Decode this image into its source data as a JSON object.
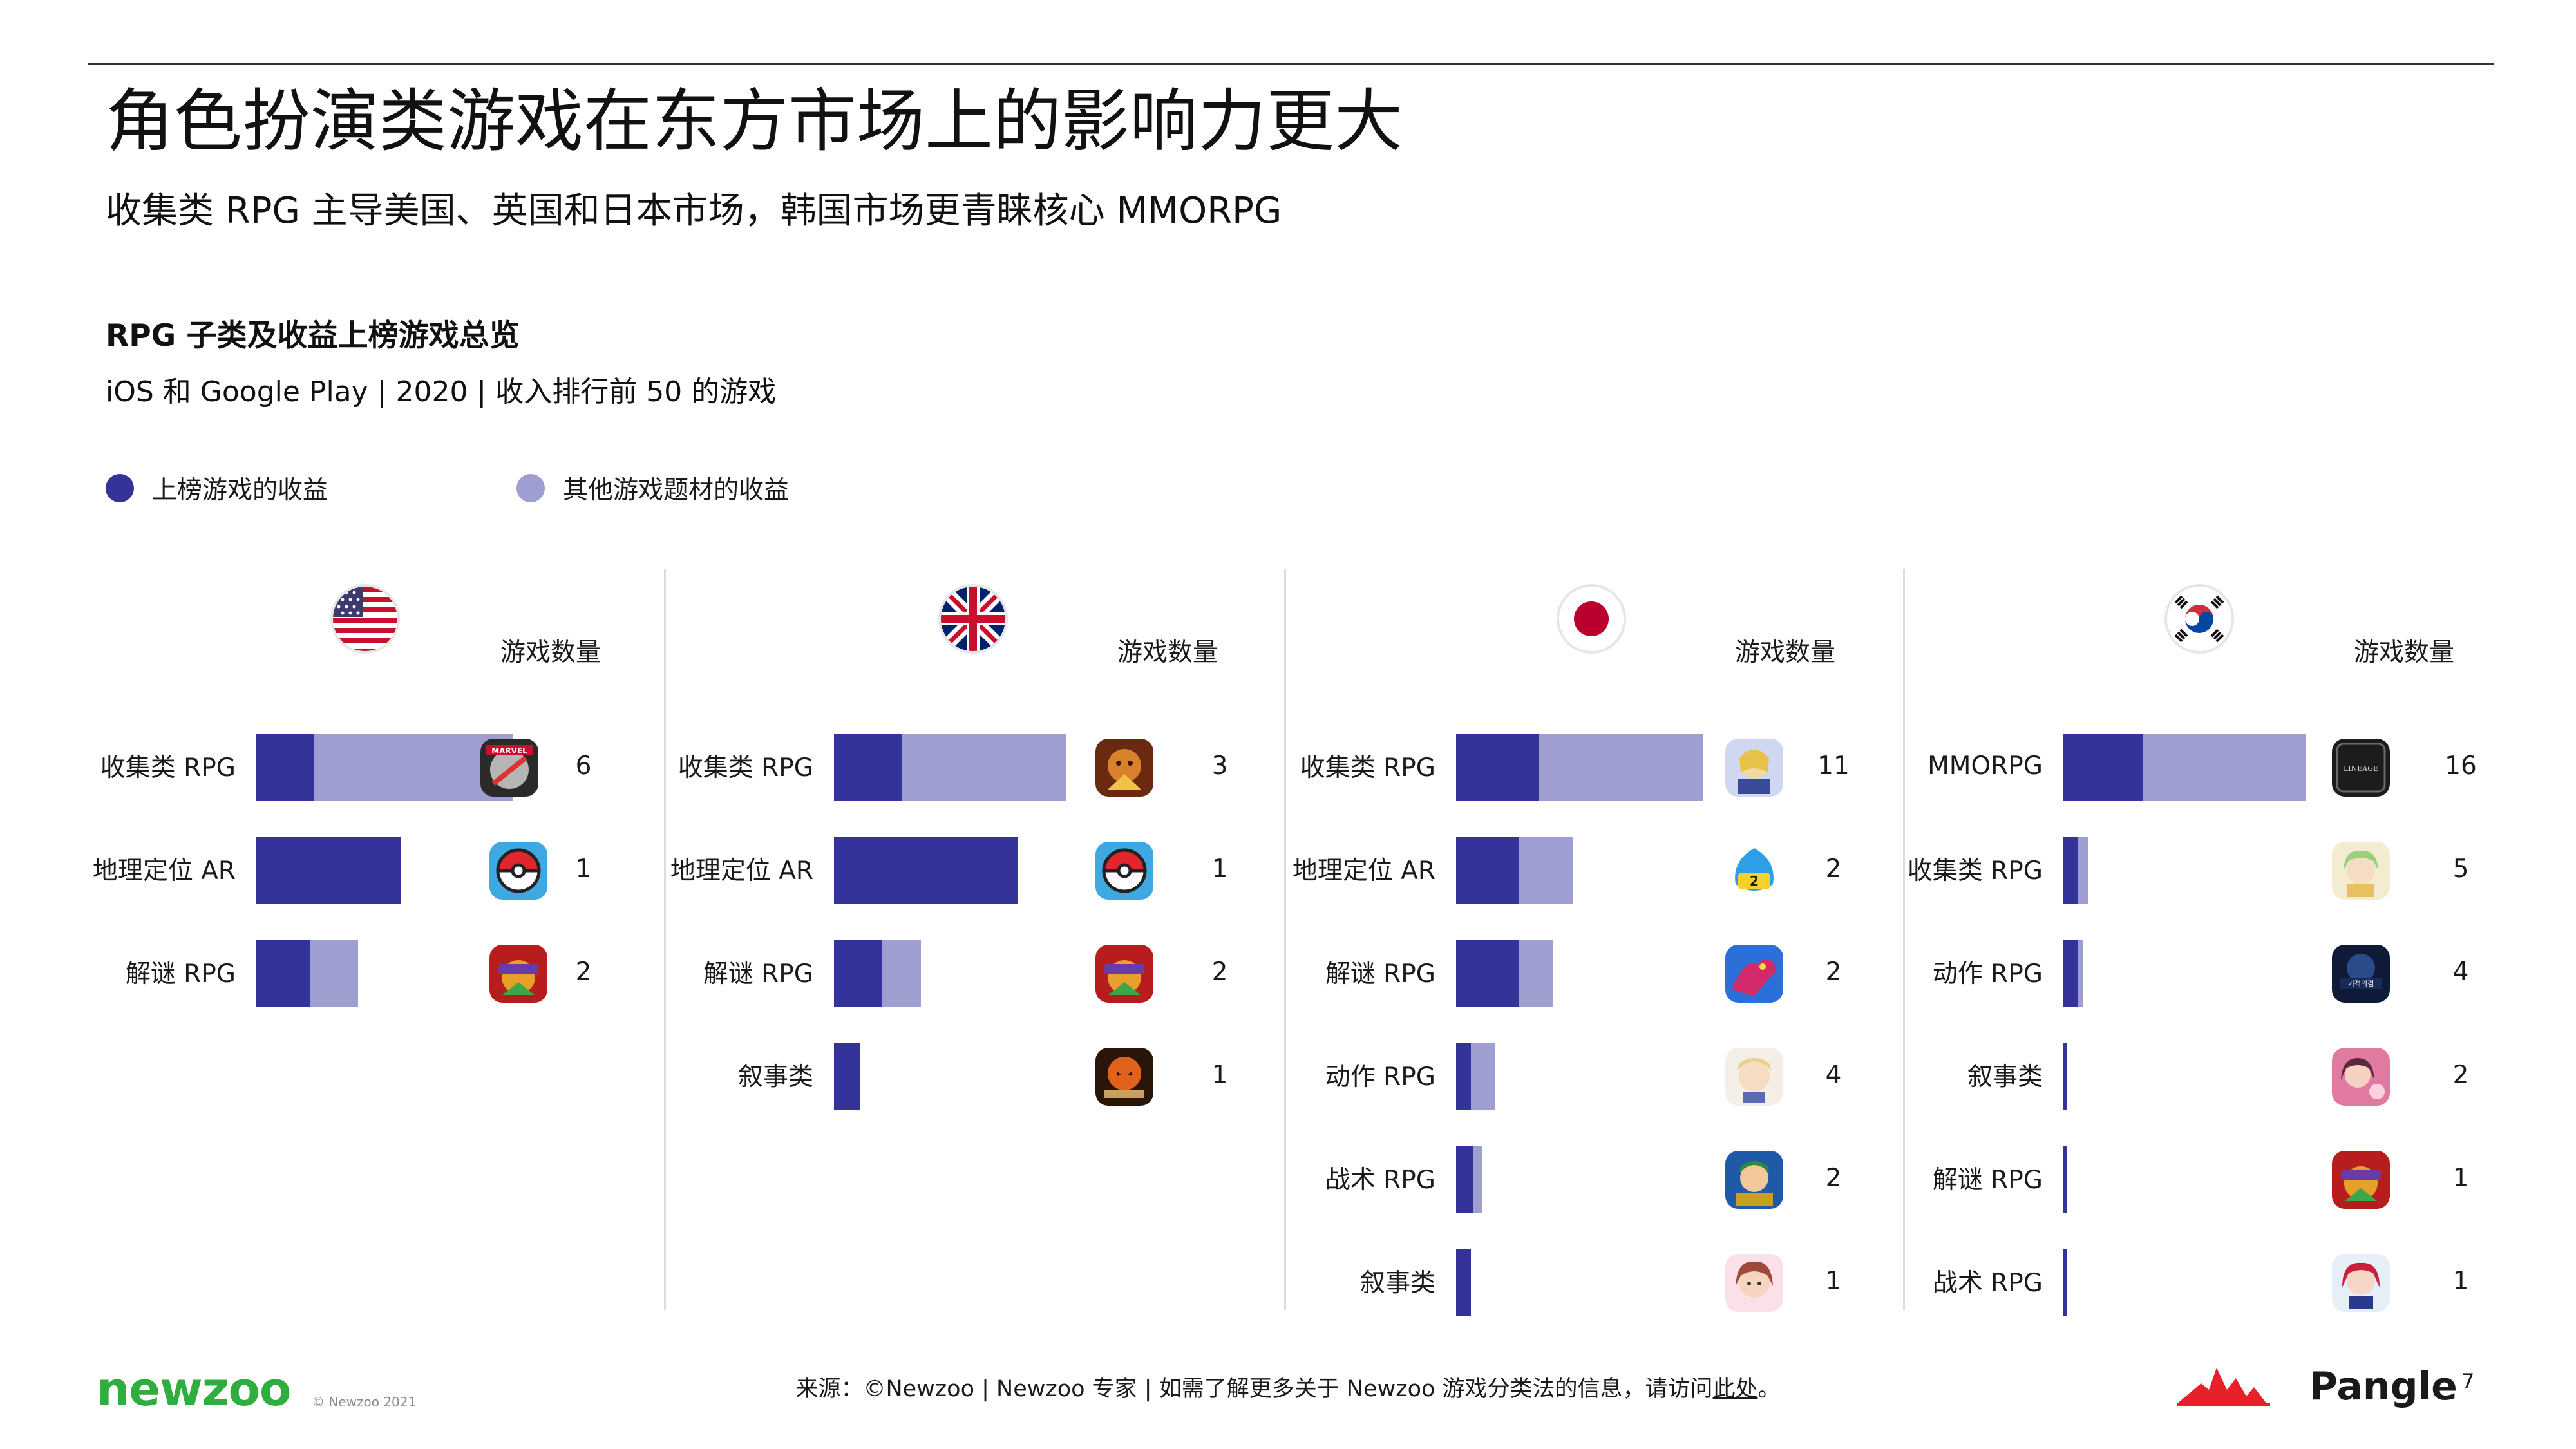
{
  "header": {
    "title": "角色扮演类游戏在东方市场上的影响力更大",
    "subtitle": "收集类 RPG 主导美国、英国和日本市场，韩国市场更青睐核心 MMORPG",
    "chart_title": "RPG 子类及收益上榜游戏总览",
    "chart_subtitle": "iOS 和 Google Play | 2020 | 收入排行前 50 的游戏"
  },
  "legend": [
    {
      "label": "上榜游戏的收益",
      "color": "#333399"
    },
    {
      "label": "其他游戏题材的收益",
      "color": "#9e9ed0"
    }
  ],
  "colors": {
    "top": "#333399",
    "other": "#9e9ed0"
  },
  "chart_data": {
    "type": "bar",
    "orientation": "horizontal",
    "stacked": true,
    "series_names": [
      "上榜游戏的收益",
      "其他游戏题材的收益"
    ],
    "count_column_label": "游戏数量",
    "panels": [
      {
        "country": "美国",
        "flag_icon": "us-flag-icon",
        "rows": [
          {
            "category": "收集类 RPG",
            "top": 0.12,
            "other": 0.41,
            "count": "6",
            "icon": "marvel-strike-force-icon"
          },
          {
            "category": "地理定位 AR",
            "top": 0.3,
            "other": 0,
            "count": "1",
            "icon": "pokemon-go-icon"
          },
          {
            "category": "解谜 RPG",
            "top": 0.11,
            "other": 0.1,
            "count": "2",
            "icon": "empires-puzzles-icon"
          }
        ]
      },
      {
        "country": "英国",
        "flag_icon": "uk-flag-icon",
        "rows": [
          {
            "category": "收集类 RPG",
            "top": 0.14,
            "other": 0.34,
            "count": "3",
            "icon": "raid-shadow-legends-icon"
          },
          {
            "category": "地理定位 AR",
            "top": 0.38,
            "other": 0,
            "count": "1",
            "icon": "pokemon-go-icon"
          },
          {
            "category": "解谜 RPG",
            "top": 0.1,
            "other": 0.08,
            "count": "2",
            "icon": "empires-puzzles-icon"
          },
          {
            "category": "叙事类",
            "top": 0.055,
            "other": 0,
            "count": "1",
            "icon": "harry-potter-hogwarts-mystery-icon"
          }
        ]
      },
      {
        "country": "日本",
        "flag_icon": "japan-flag-icon",
        "rows": [
          {
            "category": "收集类 RPG",
            "top": 0.17,
            "other": 0.34,
            "count": "11",
            "icon": "fate-grand-order-icon"
          },
          {
            "category": "地理定位 AR",
            "top": 0.13,
            "other": 0.11,
            "count": "2",
            "icon": "dragon-quest-walk-icon"
          },
          {
            "category": "解谜 RPG",
            "top": 0.13,
            "other": 0.07,
            "count": "2",
            "icon": "puzzle-and-dragons-icon"
          },
          {
            "category": "动作 RPG",
            "top": 0.03,
            "other": 0.05,
            "count": "4",
            "icon": "genshin-impact-icon"
          },
          {
            "category": "战术 RPG",
            "top": 0.035,
            "other": 0.02,
            "count": "2",
            "icon": "fire-emblem-heroes-icon"
          },
          {
            "category": "叙事类",
            "top": 0.03,
            "other": 0,
            "count": "1",
            "icon": "love-nikki-icon"
          }
        ]
      },
      {
        "country": "韩国",
        "flag_icon": "korea-flag-icon",
        "rows": [
          {
            "category": "MMORPG",
            "top": 0.16,
            "other": 0.33,
            "count": "16",
            "icon": "lineage-2m-icon"
          },
          {
            "category": "收集类 RPG",
            "top": 0.03,
            "other": 0.02,
            "count": "5",
            "icon": "collection-rpg-korea-icon"
          },
          {
            "category": "动作 RPG",
            "top": 0.03,
            "other": 0.01,
            "count": "4",
            "icon": "miracle-awakening-icon"
          },
          {
            "category": "叙事类",
            "top": 0.008,
            "other": 0,
            "count": "2",
            "icon": "narrative-korea-icon"
          },
          {
            "category": "解谜 RPG",
            "top": 0.008,
            "other": 0,
            "count": "1",
            "icon": "empires-puzzles-icon"
          },
          {
            "category": "战术 RPG",
            "top": 0.008,
            "other": 0,
            "count": "1",
            "icon": "tactics-korea-icon"
          }
        ]
      }
    ]
  },
  "footer": {
    "logo": "newzoo",
    "copyright": "© Newzoo 2021",
    "source": "来源：©Newzoo | Newzoo 专家 | 如需了解更多关于 Newzoo 游戏分类法的信息，请访问",
    "source_link": "此处",
    "source_end": "。",
    "brand": "Pangle",
    "page_number": "7"
  }
}
